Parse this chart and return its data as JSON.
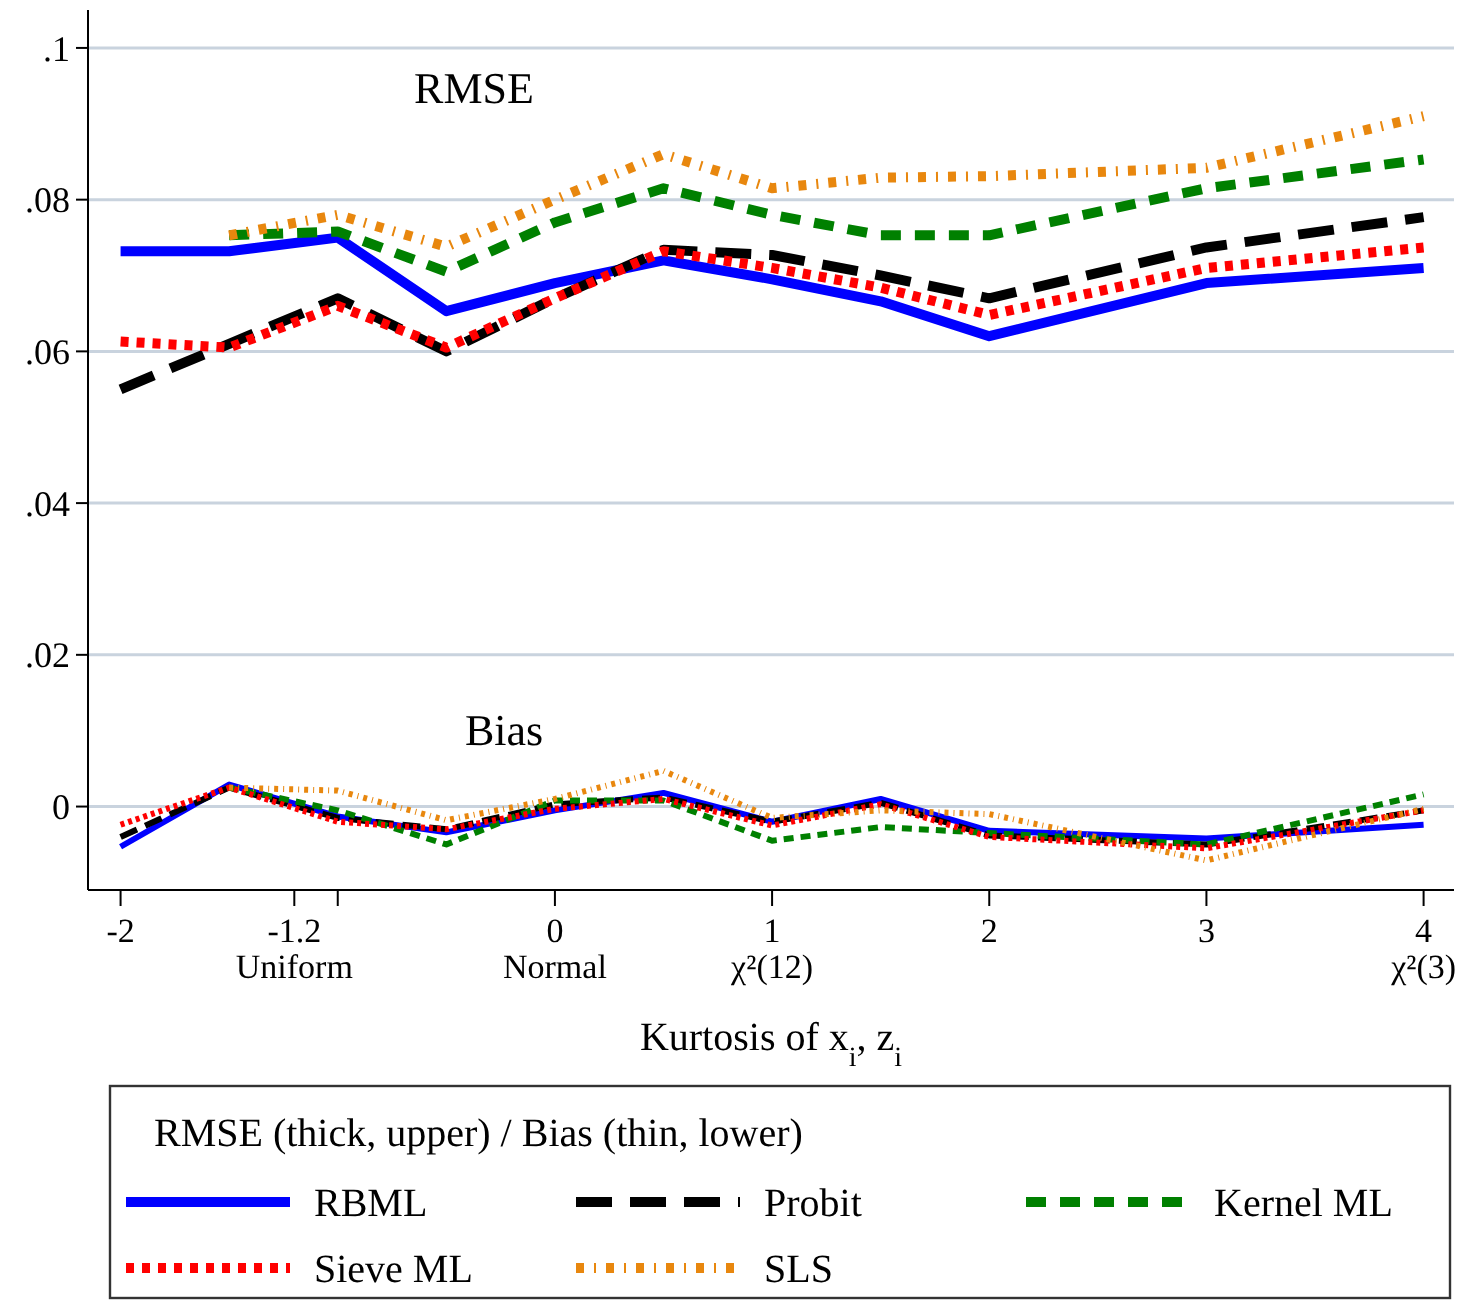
{
  "chart_data": {
    "type": "line",
    "xlabel": "Kurtosis of x$_{i}$, z$_{i}$",
    "legend_title": "RMSE (thick, upper) / Bias (thin, lower)",
    "legend": "bottom",
    "grid": "y",
    "x": [
      -2,
      -1.5,
      -1,
      -0.5,
      0,
      0.5,
      1,
      1.5,
      2,
      3,
      4
    ],
    "xlim": [
      -2.15,
      4.14
    ],
    "ylim": [
      -0.011,
      0.105
    ],
    "xticks": [
      -2,
      {
        "value": -1.2,
        "label": "-1.2\nUniform"
      },
      {
        "value": -1,
        "label": null
      },
      {
        "value": 0,
        "label": "0\nNormal"
      },
      {
        "value": 1,
        "label": "1\nχ²(12)"
      },
      2,
      3,
      {
        "value": 4,
        "label": "4\nχ²(3)"
      }
    ],
    "yticks": [
      0,
      {
        "value": 0.02,
        "label": ".02"
      },
      {
        "value": 0.04,
        "label": ".04"
      },
      {
        "value": 0.06,
        "label": ".06"
      },
      {
        "value": 0.08,
        "label": ".08"
      },
      {
        "value": 0.1,
        "label": ".1"
      }
    ],
    "annotations": [
      "RMSE",
      "Bias"
    ],
    "series": [
      {
        "name": "RBML",
        "color": "#0000ff",
        "line_style": "solid",
        "values": [
          0.0732,
          0.0732,
          0.075,
          0.0653,
          0.069,
          0.072,
          0.0695,
          0.0666,
          0.062,
          0.069,
          0.071
        ]
      },
      {
        "name": "Probit",
        "color": "#000000",
        "line_style": "dashed",
        "values": [
          0.055,
          0.061,
          0.067,
          0.06,
          0.067,
          0.0734,
          0.0727,
          0.07,
          0.067,
          0.0737,
          0.0777
        ]
      },
      {
        "name": "Kernel ML",
        "color": "#008000",
        "line_style": "dashed",
        "values": [
          null,
          0.0753,
          0.0758,
          0.0705,
          0.077,
          0.0815,
          0.078,
          0.0753,
          0.0753,
          0.0815,
          0.0853
        ]
      },
      {
        "name": "Sieve ML",
        "color": "#ff0000",
        "line_style": "dotted",
        "values": [
          0.0613,
          0.0605,
          0.066,
          0.0605,
          0.067,
          0.0732,
          0.071,
          0.0684,
          0.0648,
          0.071,
          0.0737
        ]
      },
      {
        "name": "SLS",
        "color": "#e8870e",
        "line_style": "dotted",
        "values": [
          null,
          0.0753,
          0.078,
          0.0738,
          0.08,
          0.086,
          0.0815,
          0.0829,
          0.0831,
          0.0842,
          0.091
        ]
      },
      {
        "color": "#0000ff",
        "line_style": "solid",
        "values": [
          -0.0053,
          0.0029,
          -0.0013,
          -0.0034,
          -0.0005,
          0.0018,
          -0.002,
          0.001,
          -0.0032,
          -0.0042,
          -0.0024
        ]
      },
      {
        "color": "#000000",
        "line_style": "dashed",
        "values": [
          -0.004,
          0.0025,
          -0.0015,
          -0.003,
          0.0003,
          0.0012,
          -0.002,
          0.0005,
          -0.0038,
          -0.005,
          -0.0005
        ]
      },
      {
        "color": "#008000",
        "line_style": "dashed",
        "values": [
          null,
          0.0025,
          -0.0005,
          -0.005,
          0.0008,
          0.0008,
          -0.0045,
          -0.0027,
          -0.0035,
          -0.005,
          0.0016
        ]
      },
      {
        "color": "#ff0000",
        "line_style": "dotted",
        "values": [
          -0.0024,
          0.0025,
          -0.002,
          -0.003,
          -0.0003,
          0.001,
          -0.0025,
          0.0003,
          -0.004,
          -0.0055,
          -0.0005
        ]
      },
      {
        "color": "#e8870e",
        "line_style": "dotted",
        "values": [
          null,
          0.0025,
          0.0021,
          -0.0018,
          0.001,
          0.0047,
          -0.0015,
          -0.0005,
          -0.001,
          -0.0071,
          -0.0003
        ]
      }
    ]
  }
}
